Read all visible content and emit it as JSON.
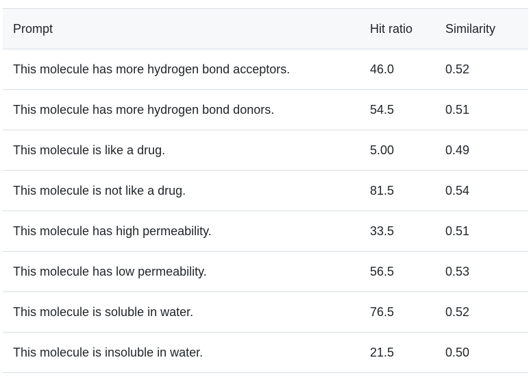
{
  "table": {
    "headers": {
      "prompt": "Prompt",
      "hit_ratio": "Hit ratio",
      "similarity": "Similarity"
    },
    "rows": [
      {
        "prompt": "This molecule has more hydrogen bond acceptors.",
        "hit_ratio": "46.0",
        "similarity": "0.52"
      },
      {
        "prompt": "This molecule has more hydrogen bond donors.",
        "hit_ratio": "54.5",
        "similarity": "0.51"
      },
      {
        "prompt": "This molecule is like a drug.",
        "hit_ratio": "5.00",
        "similarity": "0.49"
      },
      {
        "prompt": "This molecule is not like a drug.",
        "hit_ratio": "81.5",
        "similarity": "0.54"
      },
      {
        "prompt": "This molecule has high permeability.",
        "hit_ratio": "33.5",
        "similarity": "0.51"
      },
      {
        "prompt": "This molecule has low permeability.",
        "hit_ratio": "56.5",
        "similarity": "0.53"
      },
      {
        "prompt": "This molecule is soluble in water.",
        "hit_ratio": "76.5",
        "similarity": "0.52"
      },
      {
        "prompt": "This molecule is insoluble in water.",
        "hit_ratio": "21.5",
        "similarity": "0.50"
      }
    ]
  }
}
